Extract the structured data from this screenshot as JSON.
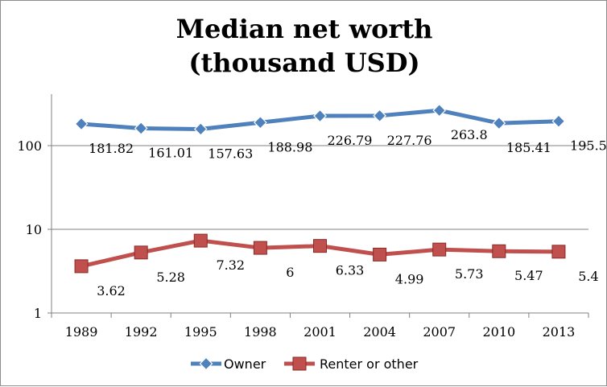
{
  "chart_data": {
    "type": "line",
    "title_lines": [
      "Median net worth",
      "(thousand USD)"
    ],
    "x": [
      "1989",
      "1992",
      "1995",
      "1998",
      "2001",
      "2004",
      "2007",
      "2010",
      "2013"
    ],
    "yscale": "log",
    "ylim": [
      1,
      400
    ],
    "ytick_labels": [
      "1",
      "10",
      "100"
    ],
    "ytick_values": [
      1,
      10,
      100
    ],
    "grid": "horizontal",
    "legend": "bottom",
    "series": [
      {
        "name": "Owner",
        "color": "#4f81bd",
        "marker": "diamond",
        "values": [
          181.82,
          161.01,
          157.63,
          188.98,
          226.79,
          227.76,
          263.8,
          185.41,
          195.5
        ],
        "labels": [
          "181.82",
          "161.01",
          "157.63",
          "188.98",
          "226.79",
          "227.76",
          "263.8",
          "185.41",
          "195.5"
        ]
      },
      {
        "name": "Renter or other",
        "color": "#c0504d",
        "marker": "square",
        "values": [
          3.62,
          5.28,
          7.32,
          6,
          6.33,
          4.99,
          5.73,
          5.47,
          5.4
        ],
        "labels": [
          "3.62",
          "5.28",
          "7.32",
          "6",
          "6.33",
          "4.99",
          "5.73",
          "5.47",
          "5.4"
        ]
      }
    ]
  }
}
